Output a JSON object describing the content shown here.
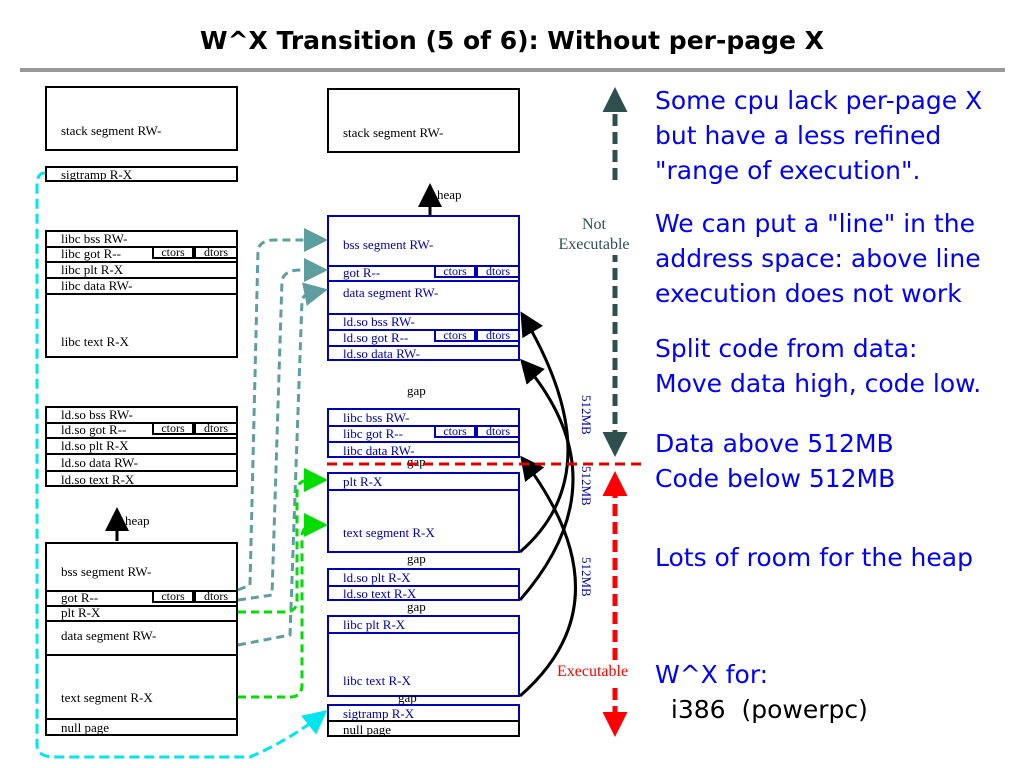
{
  "title": "W^X Transition (5 of 6): Without per-page X",
  "left": {
    "stack": "stack segment RW-",
    "sigtramp": "sigtramp R-X",
    "libc": [
      "libc bss RW-",
      "libc got R--",
      "libc plt R-X",
      "libc data RW-",
      "libc text R-X"
    ],
    "ldso": [
      "ld.so bss RW-",
      "ld.so got R--",
      "ld.so plt R-X",
      "ld.so data RW-",
      "ld.so text R-X"
    ],
    "heap": "heap",
    "main": [
      "bss segment RW-",
      "got R--",
      "plt R-X",
      "data segment RW-",
      "text segment R-X",
      "null page"
    ]
  },
  "ctors": "ctors",
  "dtors": "dtors",
  "right": {
    "stack": "stack segment RW-",
    "heap": "heap",
    "upper": [
      "bss segment RW-",
      "got R--",
      "data segment RW-",
      "ld.so bss RW-",
      "ld.so got R--",
      "ld.so data RW-"
    ],
    "gap": "gap",
    "libc_data": [
      "libc bss RW-",
      "libc got R--",
      "libc data RW-"
    ],
    "main_code": [
      "plt R-X",
      "text segment R-X"
    ],
    "ldso_code": [
      "ld.so plt R-X",
      "ld.so text R-X"
    ],
    "libc_code": [
      "libc plt R-X",
      "libc text R-X"
    ],
    "bottom": [
      "sigtramp R-X",
      "null page"
    ]
  },
  "size_label": "512MB",
  "not_executable": [
    "Not",
    "Executable"
  ],
  "executable": "Executable",
  "colors": {
    "not_exec": "#2f4f4f",
    "exec": "#ff0000",
    "text": "#0000ff",
    "box_blue": "#0000b4",
    "teal": "#5f9ea0",
    "green": "#00dd00",
    "cyan": "#00e5ee"
  },
  "notes": [
    [
      "Some cpu lack per-page X",
      "but have a less refined",
      "\"range of execution\"."
    ],
    [
      "We can put a \"line\" in the",
      "address space: above line",
      "execution does not work"
    ],
    [
      "Split code from data:",
      "Move data high, code low."
    ],
    [
      "Data above 512MB",
      "Code below 512MB"
    ],
    [
      "Lots of room for the heap"
    ],
    [
      "W^X for:",
      "  i386  (powerpc)"
    ]
  ]
}
